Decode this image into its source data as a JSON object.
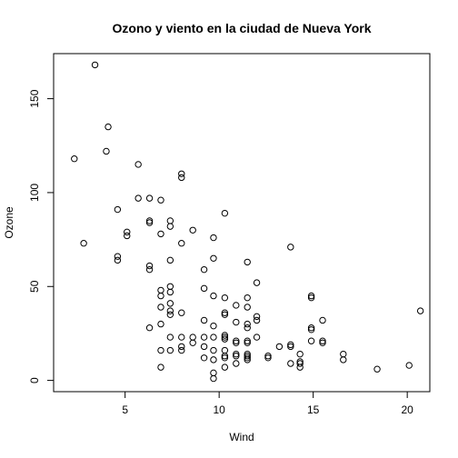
{
  "chart_data": {
    "type": "scatter",
    "title": "Ozono y viento en la ciudad de Nueva York",
    "xlabel": "Wind",
    "ylabel": "Ozone",
    "xlim": [
      1.2,
      21.2
    ],
    "ylim": [
      -6,
      174
    ],
    "xticks": [
      5,
      10,
      15,
      20
    ],
    "yticks": [
      0,
      50,
      100,
      150
    ],
    "grid": false,
    "series": [
      {
        "points": [
          [
            3.4,
            168
          ],
          [
            2.3,
            118
          ],
          [
            4.1,
            135
          ],
          [
            4.0,
            122
          ],
          [
            5.7,
            115
          ],
          [
            8.0,
            110
          ],
          [
            8.0,
            108
          ],
          [
            2.8,
            73
          ],
          [
            6.3,
            97
          ],
          [
            5.7,
            97
          ],
          [
            6.9,
            96
          ],
          [
            4.6,
            91
          ],
          [
            10.3,
            89
          ],
          [
            6.3,
            85
          ],
          [
            6.3,
            84
          ],
          [
            7.4,
            85
          ],
          [
            7.4,
            82
          ],
          [
            8.6,
            80
          ],
          [
            6.9,
            78
          ],
          [
            5.1,
            79
          ],
          [
            5.1,
            77
          ],
          [
            9.7,
            76
          ],
          [
            8.0,
            73
          ],
          [
            13.8,
            71
          ],
          [
            4.6,
            66
          ],
          [
            4.6,
            64
          ],
          [
            7.4,
            64
          ],
          [
            9.7,
            65
          ],
          [
            11.5,
            63
          ],
          [
            6.3,
            61
          ],
          [
            6.3,
            59
          ],
          [
            9.2,
            59
          ],
          [
            12.0,
            52
          ],
          [
            7.4,
            50
          ],
          [
            6.9,
            48
          ],
          [
            9.2,
            49
          ],
          [
            7.4,
            47
          ],
          [
            6.9,
            45
          ],
          [
            9.7,
            45
          ],
          [
            10.3,
            44
          ],
          [
            11.5,
            44
          ],
          [
            14.9,
            45
          ],
          [
            14.9,
            44
          ],
          [
            7.4,
            41
          ],
          [
            6.9,
            39
          ],
          [
            10.9,
            40
          ],
          [
            11.5,
            39
          ],
          [
            7.4,
            37
          ],
          [
            8.0,
            36
          ],
          [
            10.3,
            36
          ],
          [
            10.3,
            35
          ],
          [
            7.4,
            35
          ],
          [
            12.0,
            34
          ],
          [
            20.7,
            37
          ],
          [
            9.2,
            32
          ],
          [
            12.0,
            32
          ],
          [
            15.5,
            32
          ],
          [
            10.9,
            31
          ],
          [
            6.9,
            30
          ],
          [
            11.5,
            30
          ],
          [
            9.7,
            29
          ],
          [
            6.3,
            28
          ],
          [
            11.5,
            28
          ],
          [
            14.9,
            28
          ],
          [
            14.9,
            27
          ],
          [
            10.3,
            24
          ],
          [
            9.7,
            23
          ],
          [
            7.4,
            23
          ],
          [
            8.0,
            23
          ],
          [
            8.6,
            23
          ],
          [
            9.2,
            23
          ],
          [
            10.3,
            23
          ],
          [
            10.3,
            22
          ],
          [
            10.9,
            21
          ],
          [
            10.9,
            20
          ],
          [
            11.5,
            21
          ],
          [
            11.5,
            20
          ],
          [
            12.0,
            23
          ],
          [
            13.8,
            19
          ],
          [
            13.8,
            18
          ],
          [
            14.9,
            21
          ],
          [
            15.5,
            21
          ],
          [
            15.5,
            20
          ],
          [
            8.6,
            20
          ],
          [
            9.2,
            18
          ],
          [
            9.7,
            16
          ],
          [
            7.4,
            16
          ],
          [
            8.0,
            16
          ],
          [
            6.9,
            16
          ],
          [
            8.0,
            18
          ],
          [
            10.3,
            16
          ],
          [
            10.9,
            14
          ],
          [
            11.5,
            14
          ],
          [
            11.5,
            13
          ],
          [
            12.6,
            13
          ],
          [
            12.6,
            12
          ],
          [
            13.2,
            18
          ],
          [
            14.3,
            14
          ],
          [
            16.6,
            14
          ],
          [
            16.6,
            11
          ],
          [
            9.2,
            12
          ],
          [
            9.7,
            11
          ],
          [
            10.3,
            13
          ],
          [
            10.3,
            12
          ],
          [
            10.9,
            13
          ],
          [
            11.5,
            12
          ],
          [
            11.5,
            11
          ],
          [
            13.8,
            9
          ],
          [
            14.3,
            10
          ],
          [
            14.3,
            9
          ],
          [
            14.3,
            7
          ],
          [
            10.3,
            7
          ],
          [
            10.9,
            9
          ],
          [
            6.9,
            7
          ],
          [
            18.4,
            6
          ],
          [
            20.1,
            8
          ],
          [
            9.7,
            4
          ],
          [
            9.7,
            1
          ]
        ]
      }
    ]
  }
}
